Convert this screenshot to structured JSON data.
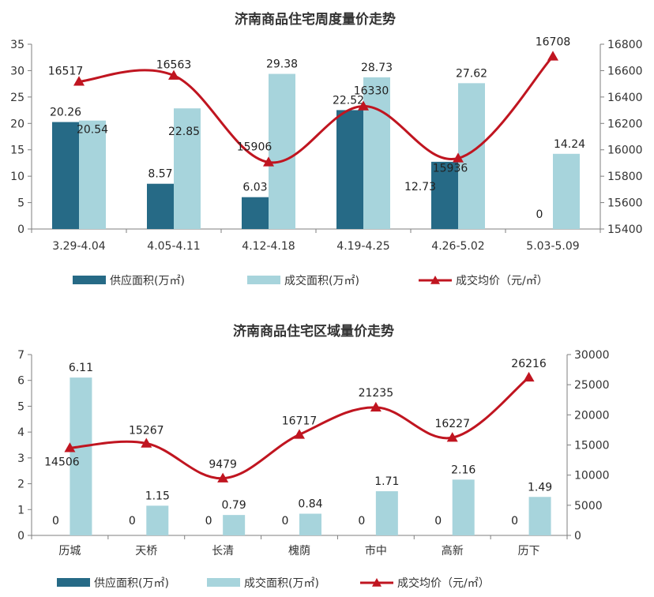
{
  "colors": {
    "supply": "#266a86",
    "sales": "#a7d4dc",
    "price": "#c01520",
    "axis": "#7f7f7f"
  },
  "chart_data": [
    {
      "type": "bar",
      "title": "济南商品住宅周度量价走势",
      "categories": [
        "3.29-4.04",
        "4.05-4.11",
        "4.12-4.18",
        "4.19-4.25",
        "4.26-5.02",
        "5.03-5.09"
      ],
      "series": [
        {
          "name": "供应面积(万㎡)",
          "kind": "bar",
          "axis": "left",
          "values": [
            20.26,
            8.57,
            6.03,
            22.52,
            12.73,
            0
          ]
        },
        {
          "name": "成交面积(万㎡)",
          "kind": "bar",
          "axis": "left",
          "values": [
            20.54,
            22.85,
            29.38,
            28.73,
            27.62,
            14.24
          ]
        },
        {
          "name": "成交均价（元/㎡）",
          "kind": "line",
          "axis": "right",
          "values": [
            16517,
            16563,
            15906,
            16330,
            15936,
            16708
          ]
        }
      ],
      "y_left": {
        "min": 0,
        "max": 35,
        "ticks": [
          0,
          5,
          10,
          15,
          20,
          25,
          30,
          35
        ]
      },
      "y_right": {
        "min": 15400,
        "max": 16800,
        "ticks": [
          15400,
          15600,
          15800,
          16000,
          16200,
          16400,
          16600,
          16800
        ]
      },
      "grid": false,
      "legend": "bottom"
    },
    {
      "type": "bar",
      "title": "济南商品住宅区域量价走势",
      "categories": [
        "历城",
        "天桥",
        "长清",
        "槐荫",
        "市中",
        "高新",
        "历下"
      ],
      "series": [
        {
          "name": "供应面积(万㎡)",
          "kind": "bar",
          "axis": "left",
          "values": [
            0,
            0,
            0,
            0,
            0,
            0,
            0
          ]
        },
        {
          "name": "成交面积(万㎡)",
          "kind": "bar",
          "axis": "left",
          "values": [
            6.11,
            1.15,
            0.79,
            0.84,
            1.71,
            2.16,
            1.49
          ]
        },
        {
          "name": "成交均价（元/㎡）",
          "kind": "line",
          "axis": "right",
          "values": [
            14506,
            15267,
            9479,
            16717,
            21235,
            16227,
            26216
          ]
        }
      ],
      "y_left": {
        "min": 0,
        "max": 7,
        "ticks": [
          0,
          1,
          2,
          3,
          4,
          5,
          6,
          7
        ]
      },
      "y_right": {
        "min": 0,
        "max": 30000,
        "ticks": [
          0,
          5000,
          10000,
          15000,
          20000,
          25000,
          30000
        ]
      },
      "grid": false,
      "legend": "bottom"
    }
  ]
}
